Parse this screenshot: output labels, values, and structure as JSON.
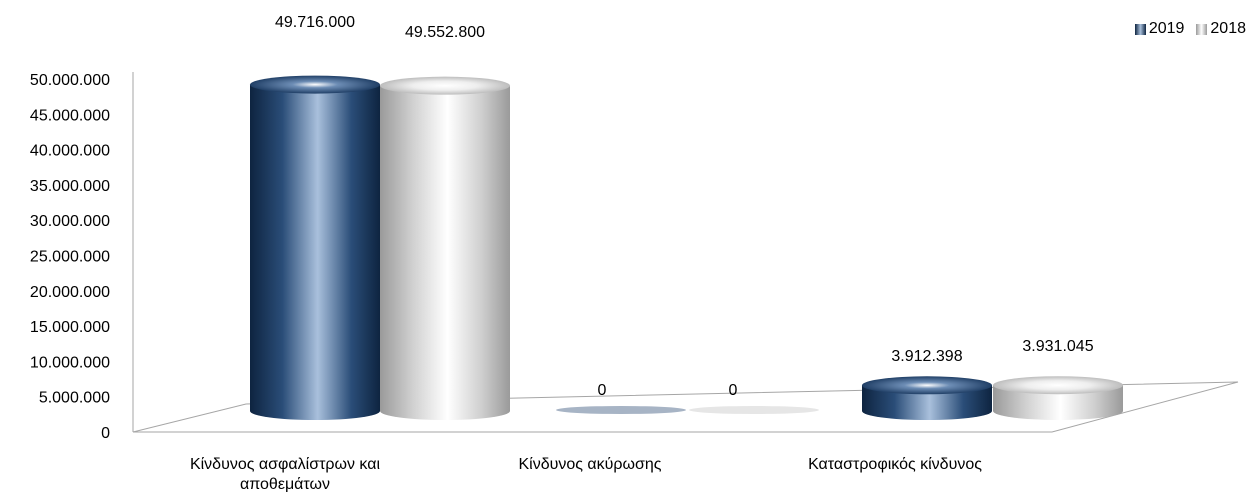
{
  "chart_data": {
    "type": "bar",
    "style": "3d-cylinder",
    "title": "",
    "xlabel": "",
    "ylabel": "",
    "categories": [
      "Κίνδυνος ασφαλίστρων και αποθεμάτων",
      "Κίνδυνος ακύρωσης",
      "Καταστροφικός κίνδυνος"
    ],
    "series": [
      {
        "name": "2019",
        "values": [
          49716000,
          0,
          3912398
        ],
        "labels": [
          "49.716.000",
          "0",
          "3.912.398"
        ],
        "color": "#1f3f66"
      },
      {
        "name": "2018",
        "values": [
          49552800,
          0,
          3931045
        ],
        "labels": [
          "49.552.800",
          "0",
          "3.931.045"
        ],
        "color": "#d0d0d0"
      }
    ],
    "ylim": [
      0,
      50000000
    ],
    "yticks": [
      "0",
      "5.000.000",
      "10.000.000",
      "15.000.000",
      "20.000.000",
      "25.000.000",
      "30.000.000",
      "35.000.000",
      "40.000.000",
      "45.000.000",
      "50.000.000"
    ],
    "grid": false,
    "legend": "top-right"
  }
}
